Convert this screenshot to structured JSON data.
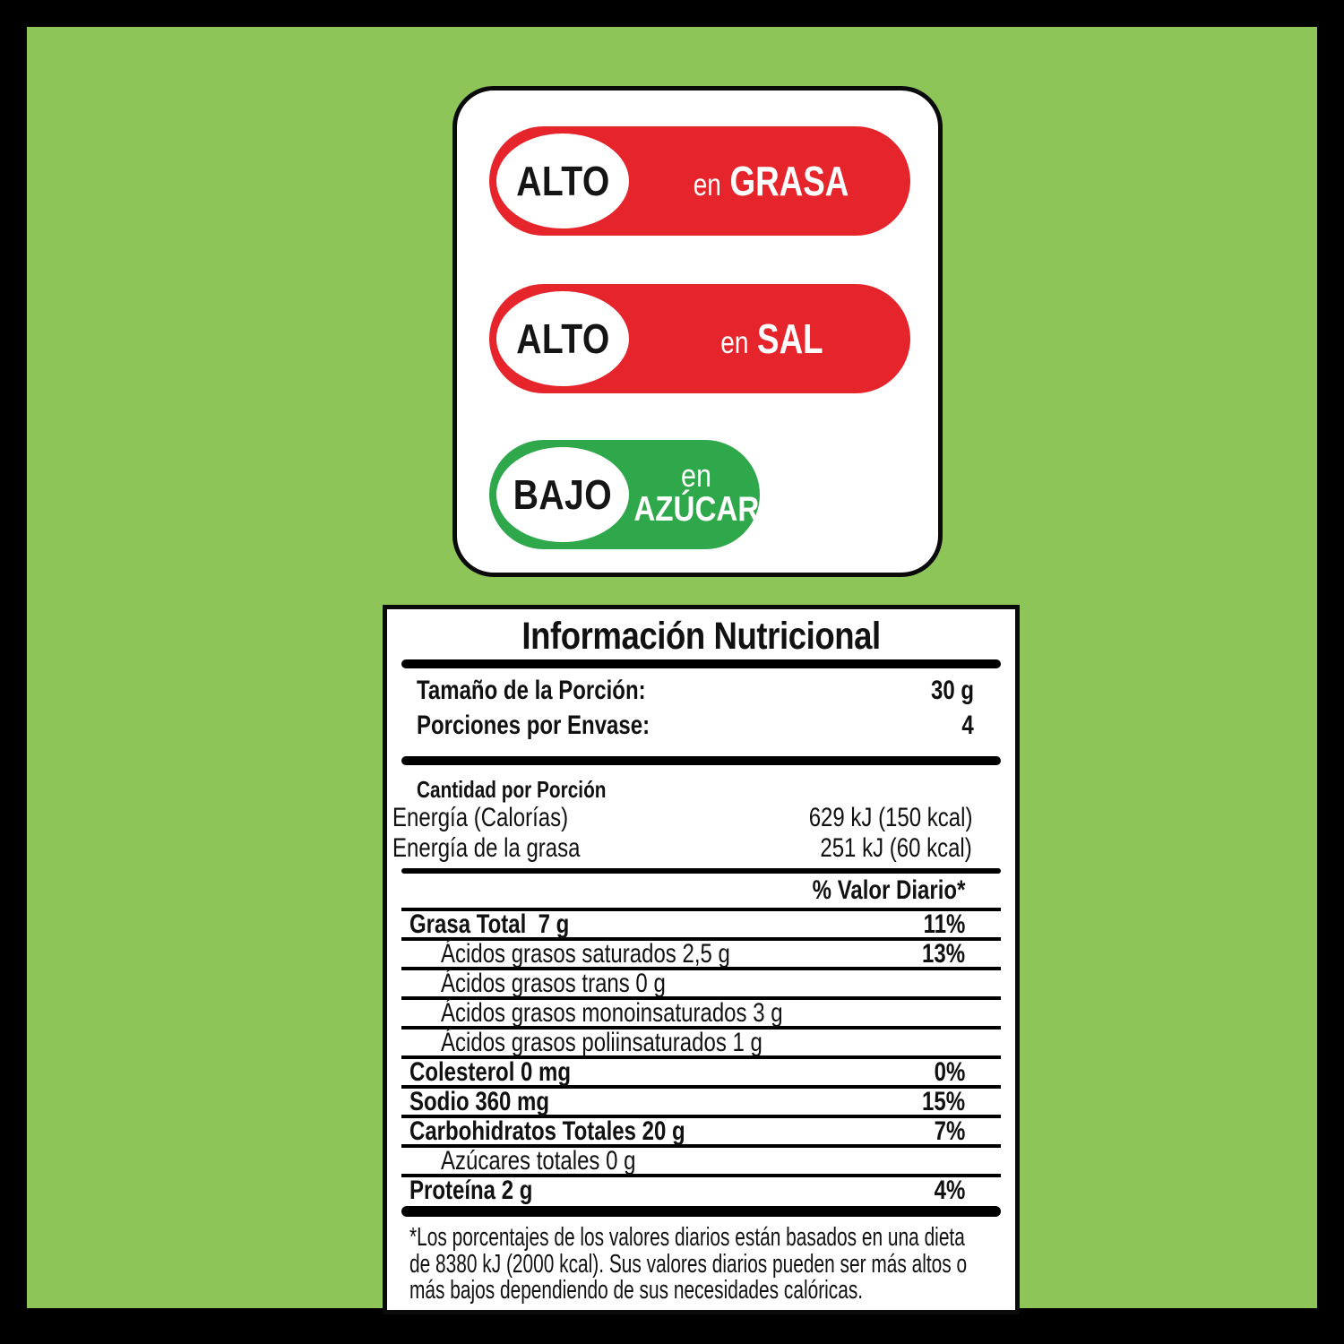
{
  "page": {
    "background_color": "#8dc558",
    "frame_color": "#000000"
  },
  "badges_card": {
    "items": [
      {
        "level": "ALTO",
        "prefix": "en",
        "nutrient": "GRASA",
        "color": "#e6242b",
        "layout": "single"
      },
      {
        "level": "ALTO",
        "prefix": "en",
        "nutrient": "SAL",
        "color": "#e6242b",
        "layout": "single"
      },
      {
        "level": "BAJO",
        "prefix": "en",
        "nutrient": "AZÚCAR",
        "color": "#2fa84c",
        "layout": "stacked"
      }
    ]
  },
  "nutrition_table": {
    "title": "Información Nutricional",
    "serving": [
      {
        "label": "Tamaño de la Porción:",
        "value": "30 g"
      },
      {
        "label": "Porciones por Envase:",
        "value": "4"
      }
    ],
    "amount_header": "Cantidad por Porción",
    "energy": [
      {
        "label": "Energía (Calorías)",
        "value": "629 kJ (150 kcal)"
      },
      {
        "label": "Energía de la grasa",
        "value": "251 kJ (60 kcal)"
      }
    ],
    "dv_header": "% Valor Diario*",
    "nutrients": [
      {
        "label": "Grasa Total  7 g",
        "dv": "11%"
      },
      {
        "label": "Ácidos grasos saturados 2,5 g",
        "dv": "13%"
      },
      {
        "label": "Ácidos grasos trans 0 g",
        "dv": ""
      },
      {
        "label": "Ácidos grasos monoinsaturados 3 g",
        "dv": ""
      },
      {
        "label": "Ácidos grasos poliinsaturados 1 g",
        "dv": ""
      },
      {
        "label": "Colesterol 0 mg",
        "dv": "0%"
      },
      {
        "label": "Sodio 360 mg",
        "dv": "15%"
      },
      {
        "label": "Carbohidratos Totales 20 g",
        "dv": "7%"
      },
      {
        "label": "Azúcares totales 0 g",
        "dv": ""
      },
      {
        "label": "Proteína 2 g",
        "dv": "4%"
      }
    ],
    "footnote_lines": [
      "*Los porcentajes de los valores diarios están basados en una dieta",
      "de 8380 kJ (2000 kcal). Sus valores diarios pueden ser más altos o",
      "más bajos dependiendo de sus necesidades calóricas."
    ]
  }
}
